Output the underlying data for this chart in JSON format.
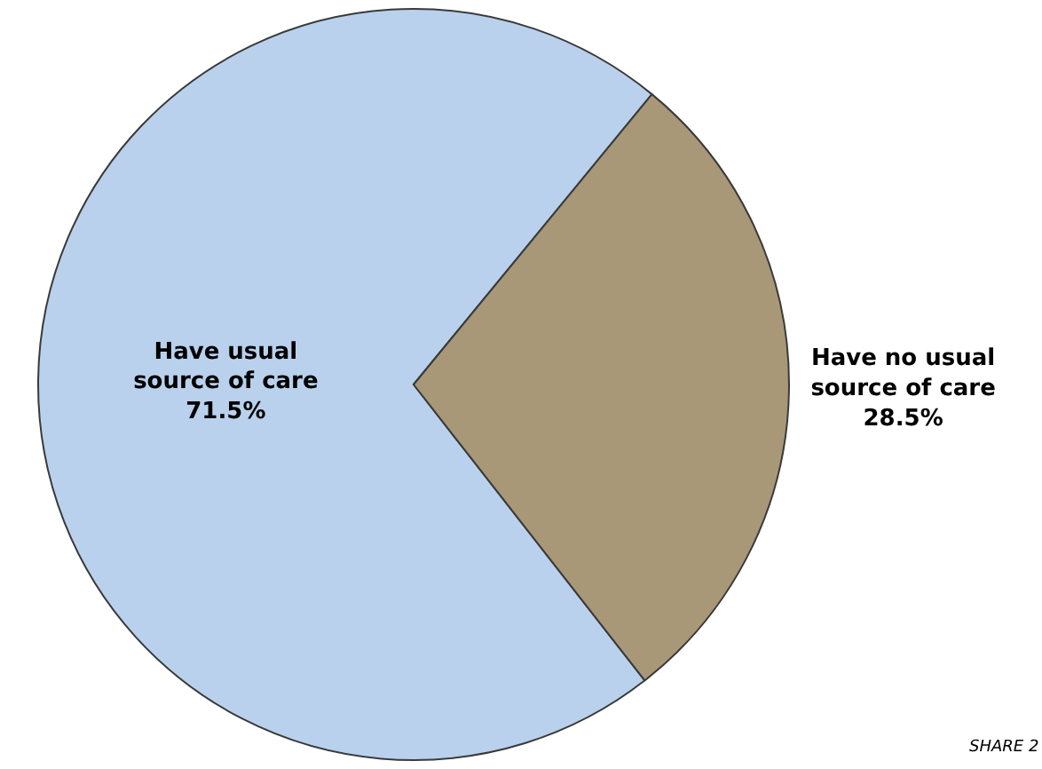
{
  "chart_data": {
    "type": "pie",
    "categories": [
      "Have usual source of care",
      "Have no usual source of care"
    ],
    "values": [
      71.5,
      28.5
    ],
    "value_labels": [
      "71.5%",
      "28.5%"
    ],
    "colors": [
      "#b9d1ec",
      "#a89878"
    ],
    "annotations": [
      "SHARE 2"
    ]
  }
}
